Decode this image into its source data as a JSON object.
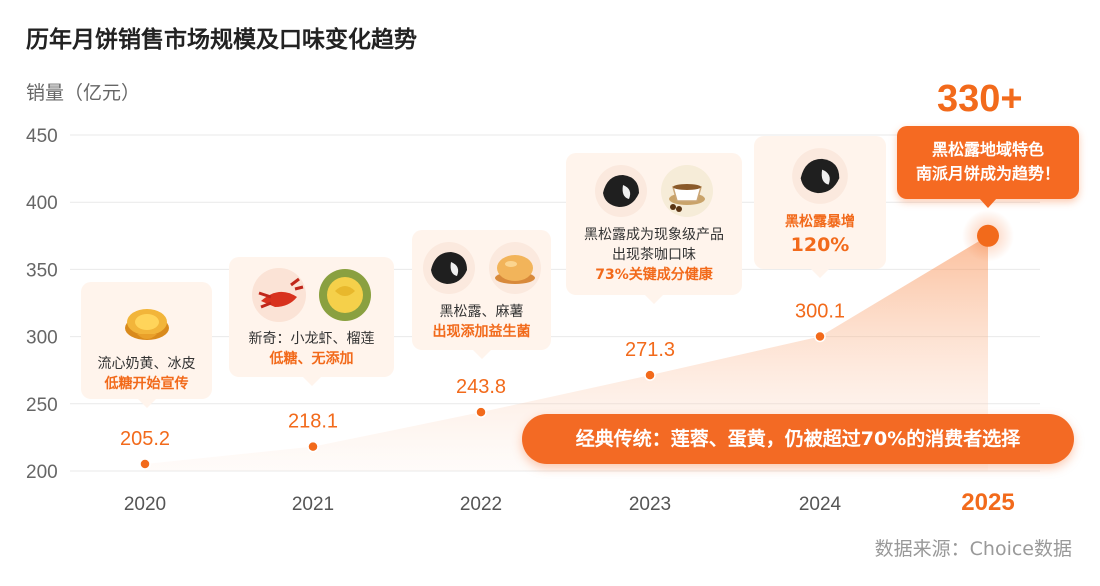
{
  "title": "历年月饼销售市场规模及口味变化趋势",
  "y_axis_label": "销量（亿元）",
  "source": "数据来源：Choice数据",
  "highlight_2025": "330+",
  "chart_data": {
    "type": "line",
    "title": "历年月饼销售市场规模及口味变化趋势",
    "ylabel": "销量（亿元）",
    "xlabel": "",
    "x": [
      "2020",
      "2021",
      "2022",
      "2023",
      "2024",
      "2025"
    ],
    "values": [
      205.2,
      218.1,
      243.8,
      271.3,
      300.1,
      375
    ],
    "data_labels": [
      "205.2",
      "218.1",
      "243.8",
      "271.3",
      "300.1",
      ""
    ],
    "yticks": [
      200,
      250,
      300,
      350,
      400,
      450
    ],
    "ylim": [
      200,
      450
    ],
    "grid": true,
    "accent_color": "#f26a1b"
  },
  "cards": [
    {
      "line1": "流心奶黄、冰皮",
      "line2": "低糖开始宣传",
      "icons": [
        "yolk-mooncake-icon"
      ]
    },
    {
      "line1": "新奇：小龙虾、榴莲",
      "line2": "低糖、无添加",
      "icons": [
        "crayfish-icon",
        "durian-icon"
      ]
    },
    {
      "line1": "黑松露、麻薯",
      "line2": "出现添加益生菌",
      "icons": [
        "black-truffle-icon",
        "mochi-icon"
      ]
    },
    {
      "line1": "黑松露成为现象级产品",
      "line1b": "出现茶咖口味",
      "line2": "73%关键成分健康",
      "icons": [
        "black-truffle-icon",
        "tea-coffee-icon"
      ]
    },
    {
      "line1": "黑松露暴增",
      "line2": "120%",
      "icons": [
        "black-truffle-icon"
      ]
    }
  ],
  "callout_2025": {
    "line1": "黑松露地域特色",
    "line2": "南派月饼成为趋势！"
  },
  "pill_text": "经典传统：莲蓉、蛋黄，仍被超过70%的消费者选择"
}
